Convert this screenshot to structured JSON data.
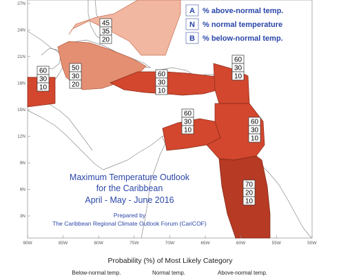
{
  "title": {
    "line1": "Maximum Temperature Outlook",
    "line2": "for the Caribbean",
    "line3": "April - May - June 2016",
    "prepared_by": "Prepared by",
    "organization": "The Caribbean Regional Climate Outlook Forum (CariCOF)"
  },
  "legend": [
    {
      "key": "A",
      "text": "% above-normal temp."
    },
    {
      "key": "N",
      "text": "% normal temperature"
    },
    {
      "key": "B",
      "text": "% below-normal temp."
    }
  ],
  "axes": {
    "lat_labels": [
      "27N",
      "24N",
      "21N",
      "18N",
      "15N",
      "12N",
      "9N",
      "6N",
      "3N"
    ],
    "lon_labels": [
      "90W",
      "85W",
      "80W",
      "75W",
      "70W",
      "65W",
      "60W",
      "55W",
      "50W"
    ]
  },
  "zones": [
    {
      "name": "bahamas-cuba-north",
      "color": "#f2b7a0",
      "values": [
        "45",
        "35",
        "20"
      ]
    },
    {
      "name": "cuba-jamaica",
      "color": "#e58f72",
      "values": [
        "50",
        "30",
        "20"
      ]
    },
    {
      "name": "belize-yucatan",
      "color": "#d2472e",
      "values": [
        "60",
        "30",
        "10"
      ]
    },
    {
      "name": "hispaniola-puerto-rico",
      "color": "#d2472e",
      "values": [
        "60",
        "30",
        "10"
      ]
    },
    {
      "name": "lesser-antilles-north",
      "color": "#d2472e",
      "values": [
        "60",
        "30",
        "10"
      ]
    },
    {
      "name": "southern-caribbean",
      "color": "#d2472e",
      "values": [
        "60",
        "30",
        "10"
      ]
    },
    {
      "name": "eastern-caribbean",
      "color": "#d2472e",
      "values": [
        "60",
        "30",
        "10"
      ]
    },
    {
      "name": "guianas",
      "color": "#b73a24",
      "values": [
        "70",
        "20",
        "10"
      ]
    }
  ],
  "bottom": {
    "title": "Probability (%) of Most Likely Category",
    "categories": [
      "Below-normal temp.",
      "Normal temp.",
      "Above-normal temp."
    ]
  },
  "colors": {
    "land_border": "#8a8a8a",
    "title_blue": "#2a46a8"
  }
}
